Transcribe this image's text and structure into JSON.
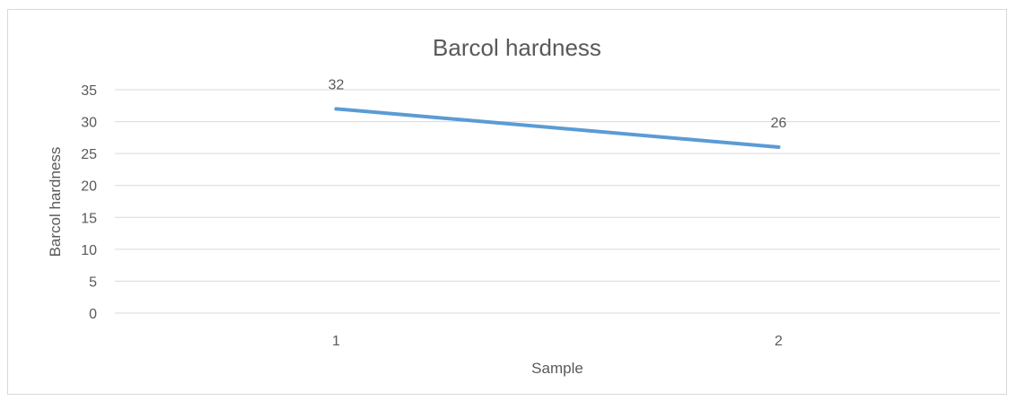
{
  "chart_data": {
    "type": "line",
    "title": "Barcol hardness",
    "xlabel": "Sample",
    "ylabel": "Barcol hardness",
    "categories": [
      "1",
      "2"
    ],
    "series": [
      {
        "values": [
          32,
          26
        ],
        "data_labels": [
          "32",
          "26"
        ]
      }
    ],
    "ylim": [
      0,
      35
    ],
    "yticks": [
      "0",
      "5",
      "10",
      "15",
      "20",
      "25",
      "30",
      "35"
    ],
    "grid": true,
    "legend": "none",
    "colors": {
      "line": "#5b9bd5",
      "grid": "#d9d9d9",
      "text": "#595959"
    }
  }
}
